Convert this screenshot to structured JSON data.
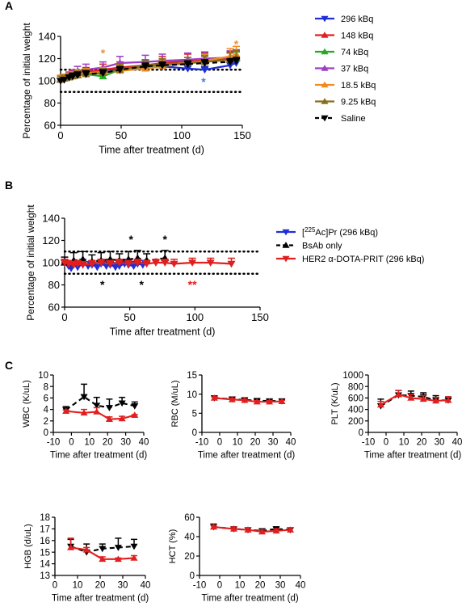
{
  "colors": {
    "blue": "#1f2fd6",
    "red": "#e02020",
    "green": "#22aa22",
    "purple": "#9b3fc4",
    "orange": "#f08a20",
    "olive": "#8a6d1a",
    "black": "#000000",
    "star_blue": "#4a7bd8",
    "star_orange": "#e8943a",
    "star_red": "#e02020"
  },
  "chart_data": [
    {
      "id": "A",
      "panel_label": "A",
      "type": "line",
      "ylabel": "Percentage of initial weight",
      "xlabel": "Time after treatment (d)",
      "xlim": [
        0,
        150
      ],
      "ylim": [
        60,
        140
      ],
      "xticks": [
        "0",
        "50",
        "100",
        "150"
      ],
      "yticks": [
        "60",
        "80",
        "100",
        "120",
        "140"
      ],
      "reference_lines": [
        90,
        110
      ],
      "legend_position": "right",
      "series": [
        {
          "name": "296 kBq",
          "color": "blue",
          "marker": "tri-down",
          "dash": false,
          "x": [
            0,
            3,
            7,
            10,
            14,
            21,
            35,
            49,
            70,
            84,
            105,
            119,
            140,
            145
          ],
          "y": [
            100,
            101,
            103,
            104,
            106,
            107,
            109,
            110,
            112,
            113,
            111,
            110,
            114,
            116
          ],
          "err": [
            2,
            2,
            2,
            2,
            3,
            3,
            3,
            3,
            3,
            3,
            3,
            3,
            3,
            3
          ]
        },
        {
          "name": "148 kBq",
          "color": "red",
          "marker": "tri-up",
          "dash": false,
          "x": [
            0,
            3,
            7,
            10,
            14,
            21,
            35,
            49,
            70,
            84,
            105,
            119,
            140,
            145
          ],
          "y": [
            102,
            103,
            104,
            105,
            106,
            108,
            110,
            112,
            114,
            116,
            118,
            119,
            120,
            121
          ],
          "err": [
            3,
            3,
            3,
            4,
            4,
            4,
            5,
            5,
            5,
            6,
            6,
            6,
            6,
            6
          ]
        },
        {
          "name": "74 kBq",
          "color": "green",
          "marker": "tri-up",
          "dash": false,
          "x": [
            0,
            3,
            7,
            10,
            14,
            21,
            35,
            49,
            70,
            84,
            105,
            119,
            140,
            145
          ],
          "y": [
            101,
            102,
            103,
            104,
            105,
            106,
            104,
            110,
            113,
            114,
            116,
            117,
            119,
            120
          ],
          "err": [
            3,
            3,
            3,
            3,
            4,
            4,
            4,
            5,
            5,
            5,
            5,
            6,
            6,
            6
          ]
        },
        {
          "name": "37 kBq",
          "color": "purple",
          "marker": "tri-up",
          "dash": false,
          "x": [
            0,
            3,
            7,
            10,
            14,
            21,
            35,
            49,
            70,
            84,
            105,
            119,
            140,
            145
          ],
          "y": [
            101,
            102,
            104,
            106,
            108,
            110,
            112,
            116,
            117,
            118,
            119,
            120,
            121,
            122
          ],
          "err": [
            3,
            3,
            4,
            4,
            5,
            5,
            5,
            6,
            6,
            6,
            6,
            6,
            6,
            6
          ]
        },
        {
          "name": "18.5 kBq",
          "color": "orange",
          "marker": "tri-up",
          "dash": false,
          "x": [
            0,
            3,
            7,
            10,
            14,
            21,
            35,
            49,
            70,
            84,
            105,
            119,
            140,
            145
          ],
          "y": [
            102,
            103,
            104,
            105,
            106,
            107,
            108,
            109,
            111,
            113,
            116,
            118,
            122,
            124
          ],
          "err": [
            3,
            3,
            3,
            3,
            4,
            4,
            4,
            5,
            5,
            5,
            5,
            6,
            7,
            7
          ]
        },
        {
          "name": "9.25 kBq",
          "color": "olive",
          "marker": "tri-up",
          "dash": false,
          "x": [
            0,
            3,
            7,
            10,
            14,
            21,
            35,
            49,
            70,
            84,
            105,
            119,
            140,
            145
          ],
          "y": [
            101,
            102,
            103,
            104,
            105,
            106,
            107,
            110,
            114,
            115,
            116,
            117,
            119,
            121
          ],
          "err": [
            3,
            3,
            3,
            3,
            4,
            4,
            4,
            5,
            5,
            5,
            5,
            5,
            6,
            6
          ]
        },
        {
          "name": "Saline",
          "color": "black",
          "marker": "tri-down",
          "dash": true,
          "x": [
            0,
            3,
            7,
            10,
            14,
            21,
            35,
            49,
            70,
            84,
            105,
            119,
            140,
            145
          ],
          "y": [
            100,
            101,
            103,
            104,
            105,
            106,
            107,
            110,
            113,
            114,
            115,
            116,
            117,
            118
          ],
          "err": [
            2,
            2,
            2,
            3,
            3,
            3,
            3,
            3,
            3,
            3,
            3,
            3,
            3,
            3
          ]
        }
      ],
      "annotations": [
        {
          "text": "*",
          "x": 35,
          "y": 126,
          "color": "star_orange"
        },
        {
          "text": "*",
          "x": 145,
          "y": 134,
          "color": "star_orange"
        },
        {
          "text": "*",
          "x": 118,
          "y": 100,
          "color": "star_blue"
        }
      ]
    },
    {
      "id": "B",
      "panel_label": "B",
      "type": "line",
      "ylabel": "Percentage of initial weight",
      "xlabel": "Time after treatment (d)",
      "xlim": [
        0,
        150
      ],
      "ylim": [
        60,
        140
      ],
      "xticks": [
        "0",
        "50",
        "100",
        "150"
      ],
      "yticks": [
        "60",
        "80",
        "100",
        "120",
        "140"
      ],
      "reference_lines": [
        90,
        110
      ],
      "legend_position": "right",
      "series": [
        {
          "name_pre": "[",
          "name_sup": "225",
          "name_post": "Ac]Pr (296 kBq)",
          "color": "blue",
          "marker": "tri-down",
          "dash": false,
          "x": [
            0,
            3,
            5,
            7,
            10,
            14,
            18,
            21,
            25,
            28,
            32,
            35,
            39,
            42,
            46,
            49,
            53,
            56,
            60
          ],
          "y": [
            100,
            97,
            95,
            98,
            96,
            99,
            97,
            98,
            96,
            99,
            97,
            98,
            96,
            97,
            99,
            98,
            97,
            99,
            98
          ],
          "err": [
            3,
            4,
            4,
            4,
            4,
            4,
            4,
            4,
            4,
            4,
            4,
            4,
            4,
            4,
            4,
            4,
            4,
            4,
            4
          ]
        },
        {
          "name": "BsAb only",
          "color": "black",
          "marker": "tri-up",
          "dash": true,
          "x": [
            0,
            7,
            14,
            21,
            28,
            35,
            42,
            49,
            56,
            63,
            77
          ],
          "y": [
            100,
            102,
            103,
            101,
            102,
            103,
            102,
            103,
            104,
            102,
            104
          ],
          "err": [
            5,
            7,
            7,
            6,
            7,
            7,
            6,
            7,
            7,
            6,
            7
          ]
        },
        {
          "name_pre": "HER2 ",
          "name_greek": "α",
          "name_post": "-DOTA-PRIT (296 kBq)",
          "color": "red",
          "marker": "tri-down",
          "dash": false,
          "x": [
            0,
            3,
            7,
            10,
            14,
            21,
            28,
            35,
            42,
            49,
            56,
            63,
            70,
            77,
            84,
            98,
            112,
            128
          ],
          "y": [
            100,
            99,
            98,
            99,
            98,
            99,
            100,
            99,
            100,
            99,
            100,
            99,
            100,
            100,
            99,
            100,
            100,
            99
          ],
          "err": [
            3,
            3,
            3,
            3,
            3,
            3,
            3,
            3,
            3,
            3,
            3,
            3,
            3,
            3,
            4,
            4,
            4,
            5
          ]
        }
      ],
      "annotations": [
        {
          "text": "*",
          "x": 51,
          "y": 122,
          "color": "black"
        },
        {
          "text": "*",
          "x": 77,
          "y": 122,
          "color": "black"
        },
        {
          "text": "*",
          "x": 29,
          "y": 81,
          "color": "black"
        },
        {
          "text": "*",
          "x": 59,
          "y": 81,
          "color": "black"
        },
        {
          "text": "**",
          "x": 98,
          "y": 81,
          "color": "star_red"
        }
      ]
    },
    {
      "id": "C-WBC",
      "panel_label": "C",
      "type": "line",
      "ylabel": "WBC (K/uL)",
      "xlabel": "Time after treatment (d)",
      "xlim": [
        -10,
        40
      ],
      "ylim": [
        0,
        10
      ],
      "xticks": [
        "-10",
        "0",
        "10",
        "20",
        "30",
        "40"
      ],
      "yticks": [
        "0",
        "2",
        "4",
        "6",
        "8",
        "10"
      ],
      "series": [
        {
          "color": "black",
          "dash": true,
          "marker": "tri-down",
          "x": [
            -3,
            7,
            14,
            21,
            28,
            35
          ],
          "y": [
            3.9,
            6.2,
            4.7,
            4.3,
            5.1,
            4.6
          ],
          "err": [
            0.6,
            2.2,
            1.4,
            1.5,
            1.0,
            0.7
          ]
        },
        {
          "color": "red",
          "dash": false,
          "marker": "tri-up",
          "x": [
            -3,
            7,
            14,
            21,
            28,
            35
          ],
          "y": [
            3.7,
            3.4,
            3.6,
            2.3,
            2.4,
            3.0
          ],
          "err": [
            0.2,
            0.6,
            0.7,
            0.4,
            0.4,
            0.1
          ]
        }
      ]
    },
    {
      "id": "C-RBC",
      "type": "line",
      "ylabel": "RBC (M/uL)",
      "xlabel": "Time after treatment (d)",
      "xlim": [
        -10,
        40
      ],
      "ylim": [
        0,
        15
      ],
      "xticks": [
        "-10",
        "0",
        "10",
        "20",
        "30",
        "40"
      ],
      "yticks": [
        "0",
        "5",
        "10",
        "15"
      ],
      "series": [
        {
          "color": "black",
          "dash": true,
          "marker": "tri-down",
          "x": [
            -3,
            7,
            14,
            21,
            28,
            35
          ],
          "y": [
            9.0,
            8.7,
            8.5,
            8.3,
            8.2,
            8.2
          ],
          "err": [
            0.3,
            0.3,
            0.3,
            0.3,
            0.3,
            0.3
          ]
        },
        {
          "color": "red",
          "dash": false,
          "marker": "tri-up",
          "x": [
            -3,
            7,
            14,
            21,
            28,
            35
          ],
          "y": [
            9.0,
            8.6,
            8.4,
            8.0,
            8.0,
            8.1
          ],
          "err": [
            0.3,
            0.3,
            0.3,
            0.3,
            0.3,
            0.3
          ]
        }
      ]
    },
    {
      "id": "C-PLT",
      "type": "line",
      "ylabel": "PLT (K/uL)",
      "xlabel": "Time after treatment (d)",
      "xlim": [
        -10,
        40
      ],
      "ylim": [
        0,
        1000
      ],
      "xticks": [
        "-10",
        "0",
        "10",
        "20",
        "30",
        "40"
      ],
      "yticks": [
        "0",
        "200",
        "400",
        "600",
        "800",
        "1000"
      ],
      "series": [
        {
          "color": "black",
          "dash": true,
          "marker": "tri-down",
          "x": [
            -3,
            7,
            14,
            21,
            28,
            35
          ],
          "y": [
            460,
            650,
            640,
            620,
            560,
            560
          ],
          "err": [
            120,
            80,
            80,
            70,
            80,
            60
          ]
        },
        {
          "color": "red",
          "dash": false,
          "marker": "tri-up",
          "x": [
            -3,
            7,
            14,
            21,
            28,
            35
          ],
          "y": [
            480,
            660,
            600,
            580,
            550,
            560
          ],
          "err": [
            60,
            70,
            60,
            60,
            60,
            60
          ]
        }
      ]
    },
    {
      "id": "C-HGB",
      "type": "line",
      "ylabel": "HGB (d/uL)",
      "xlabel": "Time after treatment (d)",
      "xlim": [
        0,
        40
      ],
      "ylim": [
        13,
        18
      ],
      "xticks": [
        "0",
        "10",
        "20",
        "30",
        "40"
      ],
      "yticks": [
        "13",
        "14",
        "15",
        "16",
        "17",
        "18"
      ],
      "series": [
        {
          "color": "black",
          "dash": true,
          "marker": "tri-down",
          "x": [
            7,
            14,
            21,
            28,
            35
          ],
          "y": [
            15.5,
            15.0,
            15.3,
            15.4,
            15.5
          ],
          "err": [
            0.6,
            0.7,
            0.4,
            0.8,
            0.6
          ]
        },
        {
          "color": "red",
          "dash": false,
          "marker": "tri-up",
          "x": [
            7,
            14,
            21,
            28,
            35
          ],
          "y": [
            15.4,
            15.2,
            14.4,
            14.4,
            14.5
          ],
          "err": [
            0.8,
            0.2,
            0.2,
            0.1,
            0.2
          ]
        }
      ]
    },
    {
      "id": "C-HCT",
      "type": "line",
      "ylabel": "HCT (%)",
      "xlabel": "Time after treatment (d)",
      "xlim": [
        -10,
        40
      ],
      "ylim": [
        0,
        60
      ],
      "xticks": [
        "-10",
        "0",
        "10",
        "20",
        "30",
        "40"
      ],
      "yticks": [
        "0",
        "20",
        "40",
        "60"
      ],
      "series": [
        {
          "color": "black",
          "dash": true,
          "marker": "tri-down",
          "x": [
            -3,
            7,
            14,
            21,
            28,
            35
          ],
          "y": [
            50,
            48,
            47,
            46,
            48,
            47
          ],
          "err": [
            3,
            2,
            2,
            2,
            2,
            2
          ]
        },
        {
          "color": "red",
          "dash": false,
          "marker": "tri-up",
          "x": [
            -3,
            7,
            14,
            21,
            28,
            35
          ],
          "y": [
            50,
            48,
            47,
            45,
            46,
            47
          ],
          "err": [
            2,
            2,
            2,
            2,
            2,
            2
          ]
        }
      ]
    }
  ]
}
